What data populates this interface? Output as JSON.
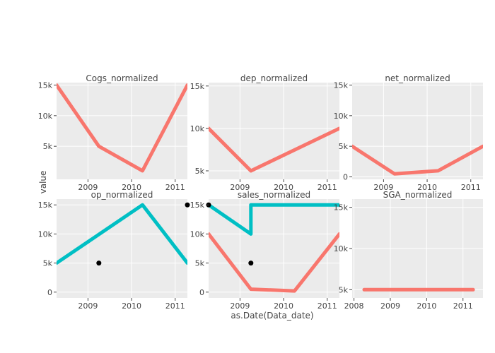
{
  "chart_data": {
    "type": "line",
    "x_axis_title": "as.Date(Data_date)",
    "y_axis_title": "value",
    "colors": {
      "panel_bg": "#ebebeb",
      "grid": "#ffffff",
      "series_a": "#f8766d",
      "series_b": "#00bfc4",
      "points": "#000000"
    },
    "grid": true,
    "panels": [
      {
        "title": "Cogs_normalized",
        "xlim": [
          2008.28,
          2011.28
        ],
        "ylim": [
          -400,
          15400
        ],
        "x_ticks": [
          2009,
          2010,
          2011
        ],
        "x_tick_labels": [
          "2009",
          "2010",
          "2011"
        ],
        "y_ticks": [
          5000,
          10000,
          15000
        ],
        "y_tick_labels": [
          "5k",
          "10k",
          "15k"
        ],
        "lines": [
          {
            "color": "series_a",
            "x": [
              2008.28,
              2009.25,
              2010.25,
              2011.28
            ],
            "y": [
              15000,
              5000,
              1000,
              15000
            ]
          }
        ],
        "points": []
      },
      {
        "title": "dep_normalized",
        "xlim": [
          2008.28,
          2011.28
        ],
        "ylim": [
          4000,
          15400
        ],
        "x_ticks": [
          2009,
          2010,
          2011
        ],
        "x_tick_labels": [
          "2009",
          "2010",
          "2011"
        ],
        "y_ticks": [
          5000,
          10000,
          15000
        ],
        "y_tick_labels": [
          "5k",
          "10k",
          "15k"
        ],
        "lines": [
          {
            "color": "series_a",
            "x": [
              2008.28,
              2009.25,
              2011.28
            ],
            "y": [
              10000,
              5000,
              10000
            ]
          }
        ],
        "points": []
      },
      {
        "title": "net_normalized",
        "xlim": [
          2008.28,
          2011.28
        ],
        "ylim": [
          -400,
          15400
        ],
        "x_ticks": [
          2009,
          2010,
          2011
        ],
        "x_tick_labels": [
          "2009",
          "2010",
          "2011"
        ],
        "y_ticks": [
          0,
          5000,
          10000,
          15000
        ],
        "y_tick_labels": [
          "0",
          "5k",
          "10k",
          "15k"
        ],
        "lines": [
          {
            "color": "series_a",
            "x": [
              2008.28,
              2009.25,
              2010.25,
              2011.28
            ],
            "y": [
              5000,
              500,
              1000,
              5000
            ]
          }
        ],
        "points": []
      },
      {
        "title": "op_normalized",
        "xlim": [
          2008.28,
          2011.28
        ],
        "ylim": [
          -1000,
          16000
        ],
        "x_ticks": [
          2009,
          2010,
          2011
        ],
        "x_tick_labels": [
          "2009",
          "2010",
          "2011"
        ],
        "y_ticks": [
          0,
          5000,
          10000,
          15000
        ],
        "y_tick_labels": [
          "0",
          "5k",
          "10k",
          "15k"
        ],
        "lines": [
          {
            "color": "series_b",
            "x": [
              2008.28,
              2010.25,
              2011.28
            ],
            "y": [
              5000,
              15000,
              5000
            ]
          }
        ],
        "points": [
          {
            "x": 2009.25,
            "y": 5000
          },
          {
            "x": 2011.28,
            "y": 15000
          }
        ]
      },
      {
        "title": "sales_normalized",
        "xlim": [
          2008.28,
          2011.28
        ],
        "ylim": [
          -1000,
          16000
        ],
        "x_ticks": [
          2009,
          2010,
          2011
        ],
        "x_tick_labels": [
          "2009",
          "2010",
          "2011"
        ],
        "y_ticks": [
          0,
          5000,
          10000,
          15000
        ],
        "y_tick_labels": [
          "0",
          "5k",
          "10k",
          "15k"
        ],
        "lines": [
          {
            "color": "series_a",
            "x": [
              2008.28,
              2009.25,
              2010.25,
              2011.28
            ],
            "y": [
              10000,
              500,
              200,
              10000
            ]
          },
          {
            "color": "series_b",
            "x": [
              2008.28,
              2009.25,
              2009.25,
              2011.28
            ],
            "y": [
              15000,
              10000,
              15000,
              15000
            ]
          }
        ],
        "points": [
          {
            "x": 2008.28,
            "y": 15000
          },
          {
            "x": 2009.25,
            "y": 5000
          }
        ]
      },
      {
        "title": "SGA_normalized",
        "xlim": [
          2007.95,
          2011.55
        ],
        "ylim": [
          4000,
          16000
        ],
        "x_ticks": [
          2008,
          2009,
          2010,
          2011
        ],
        "x_tick_labels": [
          "2008",
          "2009",
          "2010",
          "2011"
        ],
        "y_ticks": [
          5000,
          10000,
          15000
        ],
        "y_tick_labels": [
          "5k",
          "10k",
          "15k"
        ],
        "lines": [
          {
            "color": "series_a",
            "x": [
              2008.28,
              2011.28
            ],
            "y": [
              5000,
              5000
            ]
          }
        ],
        "points": []
      }
    ]
  }
}
